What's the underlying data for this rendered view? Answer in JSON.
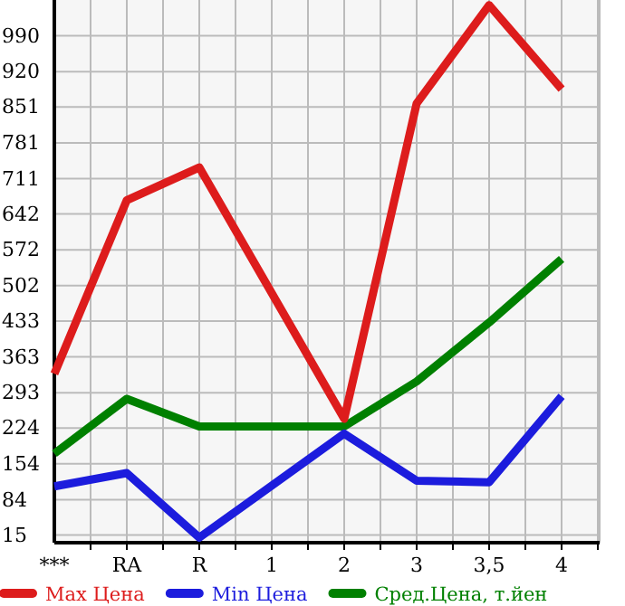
{
  "chart_data": {
    "type": "line",
    "categories": [
      "***",
      "RA",
      "R",
      "1",
      "2",
      "3",
      "3,5",
      "4"
    ],
    "series": [
      {
        "name": "Max Цена",
        "color": "#dd1c1c",
        "values": [
          330,
          669,
          733,
          null,
          242,
          858,
          1050,
          886
        ]
      },
      {
        "name": "Min Цена",
        "color": "#1c1cdd",
        "values": [
          110,
          136,
          10,
          null,
          213,
          121,
          118,
          286
        ]
      },
      {
        "name": "Сред.Цена, т.йен",
        "color": "#008000",
        "values": [
          174,
          281,
          227,
          null,
          227,
          315,
          430,
          554
        ]
      }
    ],
    "ylim": [
      0,
      1060
    ],
    "yticks": [
      15,
      84,
      154,
      224,
      293,
      363,
      433,
      502,
      572,
      642,
      711,
      781,
      851,
      920,
      990
    ],
    "grid": true,
    "legend": "bottom",
    "marker": "none",
    "line_style": "solid"
  }
}
